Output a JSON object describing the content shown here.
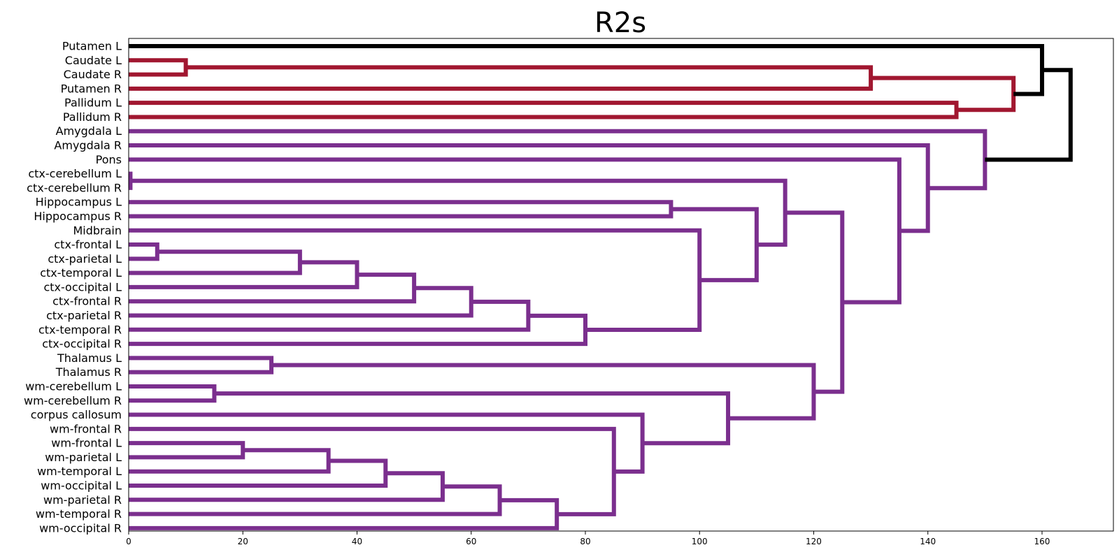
{
  "chart_data": {
    "type": "dendrogram",
    "title": "R2s",
    "xlabel": "",
    "ylabel": "",
    "xlim": [
      0,
      172.5
    ],
    "xticks": [
      0,
      20,
      40,
      60,
      80,
      100,
      120,
      140,
      160
    ],
    "grid": false,
    "colors": {
      "red_cluster": "#a11730",
      "purple_cluster": "#7b2f8e",
      "root": "#000000"
    },
    "leaves": [
      "Putamen L",
      "Caudate L",
      "Caudate R",
      "Putamen R",
      "Pallidum L",
      "Pallidum R",
      "Amygdala L",
      "Amygdala R",
      "Pons",
      "ctx-cerebellum L",
      "ctx-cerebellum R",
      "Hippocampus L",
      "Hippocampus R",
      "Midbrain",
      "ctx-frontal L",
      "ctx-parietal L",
      "ctx-temporal L",
      "ctx-occipital L",
      "ctx-frontal R",
      "ctx-parietal R",
      "ctx-temporal R",
      "ctx-occipital R",
      "Thalamus L",
      "Thalamus R",
      "wm-cerebellum L",
      "wm-cerebellum R",
      "corpus callosum",
      "wm-frontal R",
      "wm-frontal L",
      "wm-parietal L",
      "wm-temporal L",
      "wm-occipital L",
      "wm-parietal R",
      "wm-temporal R",
      "wm-occipital R"
    ],
    "merges": [
      {
        "id": "n1",
        "children": [
          "Caudate L",
          "Caudate R"
        ],
        "height": 10,
        "color": "red_cluster"
      },
      {
        "id": "n2",
        "children": [
          "n1",
          "Putamen R"
        ],
        "height": 130,
        "color": "red_cluster"
      },
      {
        "id": "n3",
        "children": [
          "Pallidum L",
          "Pallidum R"
        ],
        "height": 145,
        "color": "red_cluster"
      },
      {
        "id": "n4",
        "children": [
          "n2",
          "n3"
        ],
        "height": 155,
        "color": "red_cluster"
      },
      {
        "id": "n5",
        "children": [
          "Putamen L",
          "n4"
        ],
        "height": 160,
        "color": "root"
      },
      {
        "id": "m1",
        "children": [
          "ctx-cerebellum L",
          "ctx-cerebellum R"
        ],
        "height": 0.3,
        "color": "purple_cluster"
      },
      {
        "id": "m2",
        "children": [
          "Hippocampus L",
          "Hippocampus R"
        ],
        "height": 95,
        "color": "purple_cluster"
      },
      {
        "id": "m3",
        "children": [
          "ctx-frontal L",
          "ctx-parietal L"
        ],
        "height": 5,
        "color": "purple_cluster"
      },
      {
        "id": "m4",
        "children": [
          "m3",
          "ctx-temporal L"
        ],
        "height": 30,
        "color": "purple_cluster"
      },
      {
        "id": "m5",
        "children": [
          "m4",
          "ctx-occipital L"
        ],
        "height": 40,
        "color": "purple_cluster"
      },
      {
        "id": "m6",
        "children": [
          "m5",
          "ctx-frontal R"
        ],
        "height": 50,
        "color": "purple_cluster"
      },
      {
        "id": "m7",
        "children": [
          "m6",
          "ctx-parietal R"
        ],
        "height": 60,
        "color": "purple_cluster"
      },
      {
        "id": "m8",
        "children": [
          "m7",
          "ctx-temporal R"
        ],
        "height": 70,
        "color": "purple_cluster"
      },
      {
        "id": "m9",
        "children": [
          "m8",
          "ctx-occipital R"
        ],
        "height": 80,
        "color": "purple_cluster"
      },
      {
        "id": "m10",
        "children": [
          "Midbrain",
          "m9"
        ],
        "height": 100,
        "color": "purple_cluster"
      },
      {
        "id": "m11",
        "children": [
          "m2",
          "m10"
        ],
        "height": 110,
        "color": "purple_cluster"
      },
      {
        "id": "m12",
        "children": [
          "m1",
          "m11"
        ],
        "height": 115,
        "color": "purple_cluster"
      },
      {
        "id": "m13",
        "children": [
          "Thalamus L",
          "Thalamus R"
        ],
        "height": 25,
        "color": "purple_cluster"
      },
      {
        "id": "m14",
        "children": [
          "wm-cerebellum L",
          "wm-cerebellum R"
        ],
        "height": 15,
        "color": "purple_cluster"
      },
      {
        "id": "m15",
        "children": [
          "wm-frontal L",
          "wm-parietal L"
        ],
        "height": 20,
        "color": "purple_cluster"
      },
      {
        "id": "m16",
        "children": [
          "m15",
          "wm-temporal L"
        ],
        "height": 35,
        "color": "purple_cluster"
      },
      {
        "id": "m17",
        "children": [
          "m16",
          "wm-occipital L"
        ],
        "height": 45,
        "color": "purple_cluster"
      },
      {
        "id": "m18",
        "children": [
          "m17",
          "wm-parietal R"
        ],
        "height": 55,
        "color": "purple_cluster"
      },
      {
        "id": "m19",
        "children": [
          "m18",
          "wm-temporal R"
        ],
        "height": 65,
        "color": "purple_cluster"
      },
      {
        "id": "m20",
        "children": [
          "m19",
          "wm-occipital R"
        ],
        "height": 75,
        "color": "purple_cluster"
      },
      {
        "id": "m21",
        "children": [
          "wm-frontal R",
          "m20"
        ],
        "height": 85,
        "color": "purple_cluster"
      },
      {
        "id": "m22",
        "children": [
          "corpus callosum",
          "m21"
        ],
        "height": 90,
        "color": "purple_cluster"
      },
      {
        "id": "m23",
        "children": [
          "m14",
          "m22"
        ],
        "height": 105,
        "color": "purple_cluster"
      },
      {
        "id": "m24",
        "children": [
          "m13",
          "m23"
        ],
        "height": 120,
        "color": "purple_cluster"
      },
      {
        "id": "m25",
        "children": [
          "m12",
          "m24"
        ],
        "height": 125,
        "color": "purple_cluster"
      },
      {
        "id": "m26",
        "children": [
          "Pons",
          "m25"
        ],
        "height": 135,
        "color": "purple_cluster"
      },
      {
        "id": "m27",
        "children": [
          "Amygdala R",
          "m26"
        ],
        "height": 140,
        "color": "purple_cluster"
      },
      {
        "id": "m28",
        "children": [
          "Amygdala L",
          "m27"
        ],
        "height": 150,
        "color": "purple_cluster"
      },
      {
        "id": "root",
        "children": [
          "n5",
          "m28"
        ],
        "height": 165,
        "color": "root"
      }
    ]
  }
}
